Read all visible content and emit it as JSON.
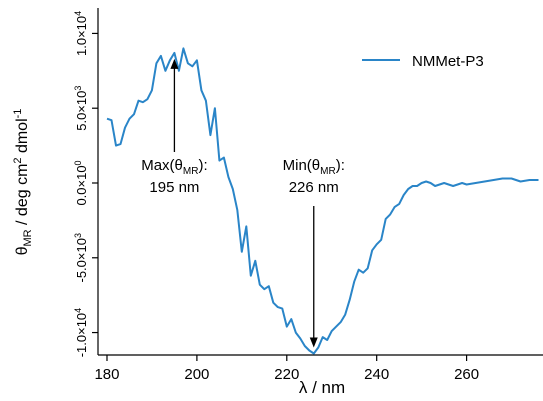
{
  "chart_data": {
    "type": "line",
    "xlabel": "λ / nm",
    "ylabel": {
      "base": "θ",
      "sub": "MR",
      "mid": " / deg cm",
      "sup1": "2",
      "mid2": " dmol",
      "sup2": "-1"
    },
    "xlim": [
      178,
      277
    ],
    "ylim": [
      -11500,
      11700
    ],
    "x_ticks": [
      180,
      200,
      220,
      240,
      260
    ],
    "x_tick_labels": [
      "180",
      "200",
      "220",
      "240",
      "260"
    ],
    "y_ticks": [
      {
        "value": 10000,
        "mant": "1.0×10",
        "exp": "4"
      },
      {
        "value": 5000,
        "mant": "5.0×10",
        "exp": "3"
      },
      {
        "value": 0,
        "mant": "0.0×10",
        "exp": "0"
      },
      {
        "value": -5000,
        "mant": "-5.0×10",
        "exp": "3"
      },
      {
        "value": -10000,
        "mant": "-1.0×10",
        "exp": "4"
      }
    ],
    "grid": false,
    "legend_position": "top-right",
    "color": "#2a85c8",
    "series": [
      {
        "name": "NMMet-P3",
        "x": [
          180,
          181,
          182,
          183,
          184,
          185,
          186,
          187,
          188,
          189,
          190,
          191,
          192,
          193,
          194,
          195,
          196,
          197,
          198,
          199,
          200,
          201,
          202,
          203,
          204,
          205,
          206,
          207,
          208,
          209,
          210,
          211,
          212,
          213,
          214,
          215,
          216,
          217,
          218,
          219,
          220,
          221,
          222,
          223,
          224,
          225,
          226,
          227,
          228,
          229,
          230,
          231,
          232,
          233,
          234,
          235,
          236,
          237,
          238,
          239,
          240,
          241,
          242,
          243,
          244,
          245,
          246,
          247,
          248,
          249,
          250,
          251,
          252,
          253,
          254,
          255,
          256,
          257,
          258,
          259,
          260,
          262,
          264,
          266,
          268,
          270,
          272,
          274,
          276
        ],
        "y": [
          4300,
          4200,
          2500,
          2600,
          3700,
          4300,
          4600,
          5500,
          5400,
          5600,
          6200,
          8000,
          8500,
          7500,
          8200,
          8700,
          7500,
          9000,
          8000,
          7800,
          8200,
          6200,
          5500,
          3200,
          5000,
          1500,
          1700,
          400,
          -400,
          -1800,
          -4600,
          -2900,
          -6200,
          -5200,
          -6800,
          -7100,
          -6900,
          -8000,
          -8300,
          -8400,
          -9600,
          -9100,
          -10000,
          -10400,
          -10900,
          -11200,
          -11400,
          -11000,
          -10300,
          -10500,
          -9900,
          -9600,
          -9300,
          -8800,
          -7800,
          -6600,
          -5800,
          -6000,
          -5700,
          -4500,
          -4100,
          -3800,
          -2400,
          -2100,
          -1600,
          -1400,
          -800,
          -400,
          -200,
          -200,
          0,
          100,
          0,
          -200,
          -100,
          0,
          -100,
          -200,
          -100,
          0,
          -100,
          0,
          100,
          200,
          300,
          300,
          100,
          200,
          200
        ]
      }
    ],
    "annotations": [
      {
        "line1": "Max(θ",
        "sub": "MR",
        "close": "):",
        "line2": "195 nm",
        "x": 195,
        "y": 8300
      },
      {
        "line1": "Min(θ",
        "sub": "MR",
        "close": "):",
        "line2": "226 nm",
        "x": 226,
        "y": -11000
      }
    ]
  }
}
